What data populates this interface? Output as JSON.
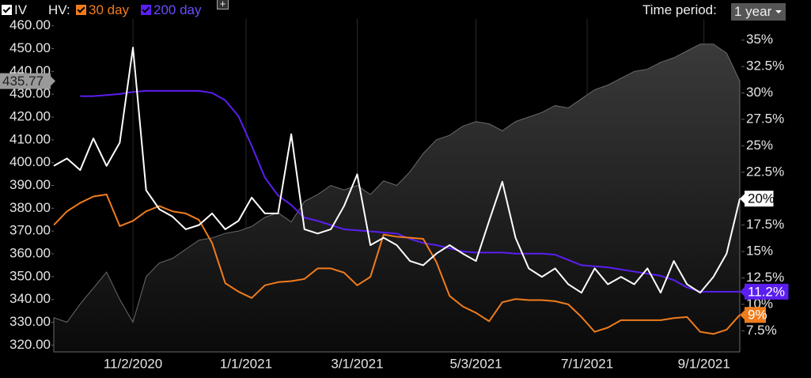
{
  "controls": {
    "iv": "IV",
    "hv": "HV:",
    "add": "+",
    "time_period_label": "Time period:",
    "time_period": "1 year"
  },
  "chart_data": {
    "type": "line",
    "x": [
      "9/21/2020",
      "9/28/2020",
      "10/5/2020",
      "10/12/2020",
      "10/19/2020",
      "10/26/2020",
      "11/2/2020",
      "11/9/2020",
      "11/16/2020",
      "11/23/2020",
      "11/30/2020",
      "12/7/2020",
      "12/14/2020",
      "12/21/2020",
      "12/28/2020",
      "1/4/2021",
      "1/11/2021",
      "1/18/2021",
      "1/25/2021",
      "2/1/2021",
      "2/8/2021",
      "2/15/2021",
      "2/22/2021",
      "3/1/2021",
      "3/8/2021",
      "3/15/2021",
      "3/22/2021",
      "3/29/2021",
      "4/5/2021",
      "4/12/2021",
      "4/19/2021",
      "4/26/2021",
      "5/3/2021",
      "5/10/2021",
      "5/17/2021",
      "5/24/2021",
      "5/31/2021",
      "6/7/2021",
      "6/14/2021",
      "6/21/2021",
      "6/28/2021",
      "7/5/2021",
      "7/12/2021",
      "7/19/2021",
      "7/26/2021",
      "8/2/2021",
      "8/9/2021",
      "8/16/2021",
      "8/23/2021",
      "8/30/2021",
      "9/6/2021",
      "9/13/2021",
      "9/20/2021"
    ],
    "xlim": [
      "9/21/2020",
      "9/20/2021"
    ],
    "xticks": [
      "11/2/2020",
      "1/1/2021",
      "3/1/2021",
      "5/3/2021",
      "7/1/2021",
      "9/1/2021"
    ],
    "grid": true,
    "ylim": [
      317,
      463
    ],
    "yticks": [
      {
        "value": 320,
        "label": "320.00"
      },
      {
        "value": 330,
        "label": "330.00"
      },
      {
        "value": 340,
        "label": "340.00"
      },
      {
        "value": 350,
        "label": "350.00"
      },
      {
        "value": 360,
        "label": "360.00"
      },
      {
        "value": 370,
        "label": "370.00"
      },
      {
        "value": 380,
        "label": "380.00"
      },
      {
        "value": 390,
        "label": "390.00"
      },
      {
        "value": 400,
        "label": "400.00"
      },
      {
        "value": 410,
        "label": "410.00"
      },
      {
        "value": 420,
        "label": "420.00"
      },
      {
        "value": 430,
        "label": "430.00"
      },
      {
        "value": 440,
        "label": "440.00"
      },
      {
        "value": 450,
        "label": "450.00"
      },
      {
        "value": 460,
        "label": "460.00"
      }
    ],
    "y2lim": [
      5.5,
      37
    ],
    "y2ticks": [
      {
        "value": 7.5,
        "label": "7.5%"
      },
      {
        "value": 10,
        "label": "10%"
      },
      {
        "value": 12.5,
        "label": "12.5%"
      },
      {
        "value": 15,
        "label": "15%"
      },
      {
        "value": 17.5,
        "label": "17.5%"
      },
      {
        "value": 20,
        "label": "20%"
      },
      {
        "value": 22.5,
        "label": "22.5%"
      },
      {
        "value": 25,
        "label": "25%"
      },
      {
        "value": 27.5,
        "label": "27.5%"
      },
      {
        "value": 30,
        "label": "30%"
      },
      {
        "value": 32.5,
        "label": "32.5%"
      },
      {
        "value": 35,
        "label": "35%"
      }
    ],
    "price": {
      "color": "#6a6a6a",
      "badge": "435.77",
      "values": [
        332,
        330,
        338,
        345,
        352,
        340,
        330,
        350,
        356,
        358,
        362,
        366,
        367,
        369,
        370,
        372,
        376,
        378,
        374,
        383,
        386,
        390,
        388,
        390,
        386,
        392,
        390,
        396,
        404,
        410,
        412,
        416,
        418,
        417,
        414,
        418,
        420,
        422,
        425,
        424,
        428,
        432,
        434,
        437,
        440,
        441,
        444,
        446,
        449,
        452,
        452,
        448,
        435.77
      ]
    },
    "series": [
      {
        "name": "IV",
        "color": "#ffffff",
        "axis": "y2",
        "badge": "20%",
        "values": [
          23.1,
          23.8,
          22.7,
          25.7,
          23.1,
          25.3,
          34.3,
          20.8,
          19,
          18.3,
          17.1,
          17.5,
          18.6,
          17.1,
          17.9,
          20.1,
          18.6,
          18.6,
          26.1,
          17.1,
          16.7,
          17.1,
          19.3,
          22.3,
          15.6,
          16.3,
          15.6,
          14.1,
          13.7,
          14.8,
          15.6,
          14.8,
          14.1,
          17.9,
          21.6,
          16.3,
          13.4,
          12.6,
          13.4,
          11.9,
          11.1,
          13.4,
          11.9,
          12.6,
          11.9,
          13.4,
          11.1,
          14.1,
          11.9,
          11.1,
          12.6,
          14.8,
          20
        ]
      },
      {
        "name": "30 day",
        "color": "#f07c1c",
        "axis": "y2",
        "badge": "9%",
        "values": [
          17.5,
          18.8,
          19.6,
          20.2,
          20.4,
          17.4,
          17.9,
          18.8,
          19.3,
          18.8,
          18.6,
          18,
          15.8,
          12,
          11.2,
          10.6,
          11.8,
          12.1,
          12.2,
          12.4,
          13.4,
          13.4,
          13,
          11.8,
          12.6,
          16.6,
          16.4,
          16.3,
          16.2,
          14,
          10.8,
          9.8,
          9.2,
          8.4,
          10.2,
          10.5,
          10.4,
          10.4,
          10.3,
          10,
          8.8,
          7.4,
          7.8,
          8.5,
          8.5,
          8.5,
          8.5,
          8.7,
          8.8,
          7.4,
          7.2,
          7.6,
          9
        ]
      },
      {
        "name": "200 day",
        "color": "#5b1ef0",
        "axis": "y2",
        "badge": "11.2%",
        "values": [
          null,
          null,
          29.7,
          29.7,
          29.8,
          29.9,
          30.1,
          30.2,
          30.2,
          30.2,
          30.2,
          30.2,
          30,
          29.3,
          27.8,
          25,
          22,
          20.3,
          19.4,
          18.2,
          17.9,
          17.5,
          17.1,
          17,
          16.9,
          16.8,
          16.7,
          16.2,
          15.8,
          15.6,
          15.3,
          15,
          14.9,
          14.9,
          14.9,
          14.8,
          14.8,
          14.8,
          14.7,
          14.2,
          13.7,
          13.6,
          13.5,
          13.3,
          13.1,
          12.9,
          12.7,
          12.3,
          11.6,
          11.2,
          11.2,
          11.2,
          11.2
        ]
      }
    ]
  }
}
